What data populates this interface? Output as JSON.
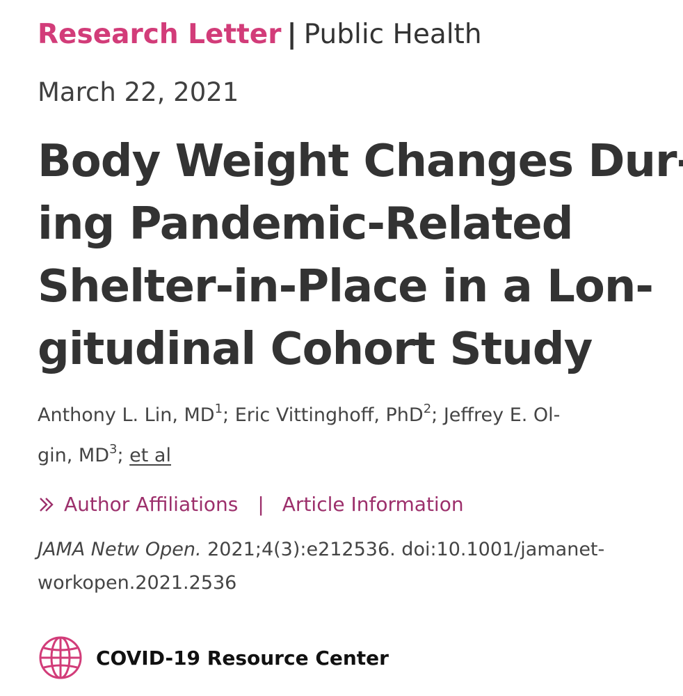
{
  "header": {
    "article_type": "Research Letter",
    "separator": "|",
    "section": "Public Health"
  },
  "date": "March 22, 2021",
  "title_lines": [
    "Body Weight Changes Dur-",
    "ing Pandemic-Related",
    "Shelter-in-Place in a Lon-",
    "gitudinal Cohort Study"
  ],
  "authors": {
    "line1_a": "Anthony L. Lin, MD",
    "sup1": "1",
    "line1_b": "; Eric Vittinghoff, PhD",
    "sup2": "2",
    "line1_c": "; Jeffrey E. Ol-",
    "line2_a": "gin, MD",
    "sup3": "3",
    "line2_b": "; ",
    "et_al": "et al"
  },
  "links": {
    "affiliations": "Author Affiliations",
    "divider": "|",
    "article_info": "Article Information"
  },
  "citation": {
    "journal": "JAMA Netw Open.",
    "line1_rest": " 2021;4(3):e212536. doi:10.1001/jamanet-",
    "line2": "workopen.2021.2536"
  },
  "resource": {
    "label": "COVID-19 Resource Center",
    "icon": "globe-icon"
  },
  "colors": {
    "accent_pink": "#d23c79",
    "link_magenta": "#9c2f6b",
    "text_dark": "#333333"
  }
}
